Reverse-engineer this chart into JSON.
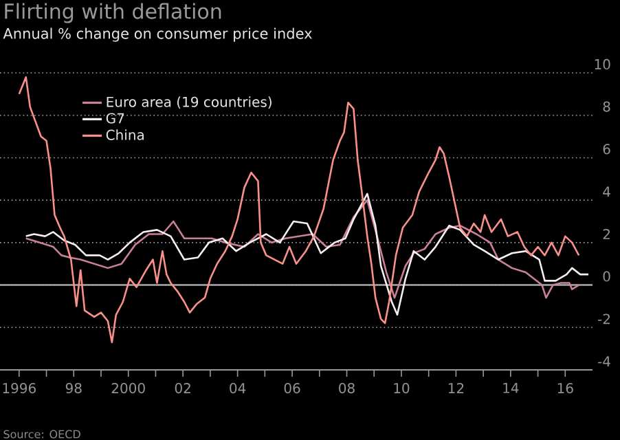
{
  "chart_data": {
    "type": "line",
    "title": "Flirting with deflation",
    "subtitle": "Annual % change on consumer price index",
    "annotations": [
      "Source: OECD"
    ],
    "xlim": [
      1995.3,
      2017.0
    ],
    "xticks": [
      {
        "value": 1996,
        "label": "1996"
      },
      {
        "value": 1997,
        "label": null
      },
      {
        "value": 1998,
        "label": "98"
      },
      {
        "value": 1999,
        "label": null
      },
      {
        "value": 2000,
        "label": "2000"
      },
      {
        "value": 2001,
        "label": null
      },
      {
        "value": 2002,
        "label": "02"
      },
      {
        "value": 2003,
        "label": null
      },
      {
        "value": 2004,
        "label": "04"
      },
      {
        "value": 2005,
        "label": null
      },
      {
        "value": 2006,
        "label": "06"
      },
      {
        "value": 2007,
        "label": null
      },
      {
        "value": 2008,
        "label": "08"
      },
      {
        "value": 2009,
        "label": null
      },
      {
        "value": 2010,
        "label": "10"
      },
      {
        "value": 2011,
        "label": null
      },
      {
        "value": 2012,
        "label": "12"
      },
      {
        "value": 2013,
        "label": null
      },
      {
        "value": 2014,
        "label": "14"
      },
      {
        "value": 2015,
        "label": null
      },
      {
        "value": 2016,
        "label": "16"
      }
    ],
    "ylim": [
      -4,
      10
    ],
    "yticks": [
      -4,
      -2,
      0,
      2,
      4,
      6,
      8,
      10
    ],
    "grid": "y",
    "legend": "top left",
    "marker": "none",
    "line_style": "solid",
    "ref_lines": [
      {
        "axis": "y",
        "value": 0,
        "color": "#a8a8a8"
      }
    ],
    "series": [
      {
        "name": "Euro area (19 countries)",
        "color": "#cc7f9c",
        "x": [
          1996.25,
          1996.75,
          1997.25,
          1997.55,
          1997.85,
          1998.25,
          1998.75,
          1999.25,
          1999.75,
          2000.25,
          2000.75,
          2001.25,
          2001.65,
          2002.05,
          2002.55,
          2003.05,
          2003.55,
          2004.25,
          2004.75,
          2005.25,
          2005.75,
          2006.25,
          2006.75,
          2007.25,
          2007.75,
          2008.25,
          2008.75,
          2009.15,
          2009.45,
          2009.75,
          2010.15,
          2010.45,
          2010.85,
          2011.25,
          2011.75,
          2012.15,
          2012.75,
          2013.25,
          2013.55,
          2014.05,
          2014.55,
          2015.15,
          2015.3,
          2015.55,
          2015.85,
          2016.15,
          2016.25,
          2016.5
        ],
        "values": [
          2.2,
          2.0,
          1.8,
          1.4,
          1.3,
          1.2,
          1.0,
          0.8,
          1.0,
          1.9,
          2.4,
          2.4,
          3.0,
          2.2,
          2.2,
          2.2,
          2.0,
          1.8,
          2.4,
          2.0,
          2.2,
          2.3,
          2.4,
          1.8,
          1.9,
          3.2,
          4.0,
          2.1,
          0.6,
          -0.6,
          0.9,
          1.5,
          1.7,
          2.4,
          2.7,
          2.8,
          2.4,
          2.0,
          1.2,
          0.8,
          0.6,
          0.0,
          -0.6,
          0.0,
          0.1,
          0.1,
          -0.2,
          0.0
        ]
      },
      {
        "name": "G7",
        "color": "#f6eef0",
        "x": [
          1996.25,
          1996.55,
          1996.95,
          1997.25,
          1997.65,
          1998.05,
          1998.45,
          1998.95,
          1999.25,
          1999.65,
          2000.05,
          2000.55,
          2001.05,
          2001.55,
          2002.05,
          2002.55,
          2002.95,
          2003.45,
          2003.95,
          2004.45,
          2005.05,
          2005.55,
          2006.05,
          2006.55,
          2007.05,
          2007.55,
          2007.95,
          2008.25,
          2008.75,
          2009.05,
          2009.25,
          2009.65,
          2009.85,
          2010.15,
          2010.45,
          2010.85,
          2011.25,
          2011.75,
          2012.15,
          2012.65,
          2013.05,
          2013.55,
          2014.05,
          2014.55,
          2015.05,
          2015.25,
          2015.65,
          2016.05,
          2016.25,
          2016.55,
          2016.85
        ],
        "values": [
          2.3,
          2.4,
          2.3,
          2.5,
          2.1,
          1.9,
          1.4,
          1.4,
          1.2,
          1.5,
          2.0,
          2.5,
          2.6,
          2.3,
          1.2,
          1.3,
          2.0,
          2.2,
          1.6,
          2.0,
          2.4,
          2.0,
          3.0,
          2.9,
          1.5,
          2.0,
          2.2,
          3.1,
          4.3,
          2.8,
          0.9,
          -0.8,
          -1.4,
          0.3,
          1.6,
          1.2,
          1.8,
          2.8,
          2.6,
          1.9,
          1.6,
          1.2,
          1.5,
          1.6,
          1.2,
          0.2,
          0.2,
          0.5,
          0.8,
          0.5,
          0.5
        ]
      },
      {
        "name": "China",
        "color": "#f9918a",
        "x": [
          1996.0,
          1996.25,
          1996.4,
          1996.8,
          1997.0,
          1997.15,
          1997.3,
          1997.5,
          1997.65,
          1997.9,
          1998.1,
          1998.25,
          1998.4,
          1998.75,
          1999.0,
          1999.25,
          1999.4,
          1999.55,
          1999.8,
          2000.05,
          2000.3,
          2000.65,
          2000.9,
          2001.05,
          2001.25,
          2001.4,
          2001.55,
          2001.8,
          2002.05,
          2002.25,
          2002.5,
          2002.8,
          2003.0,
          2003.25,
          2003.55,
          2003.8,
          2004.0,
          2004.25,
          2004.5,
          2004.75,
          2004.85,
          2005.05,
          2005.65,
          2005.9,
          2006.15,
          2006.5,
          2006.8,
          2007.15,
          2007.5,
          2007.75,
          2007.9,
          2008.05,
          2008.25,
          2008.4,
          2008.55,
          2008.75,
          2008.9,
          2009.05,
          2009.25,
          2009.4,
          2009.55,
          2009.8,
          2010.05,
          2010.4,
          2010.65,
          2011.0,
          2011.25,
          2011.4,
          2011.55,
          2011.75,
          2011.9,
          2012.15,
          2012.4,
          2012.65,
          2012.9,
          2013.05,
          2013.3,
          2013.65,
          2013.9,
          2014.25,
          2014.5,
          2014.75,
          2015.0,
          2015.25,
          2015.5,
          2015.75,
          2016.0,
          2016.25,
          2016.5
        ],
        "values": [
          9.0,
          9.8,
          8.4,
          7.0,
          6.8,
          5.5,
          3.3,
          2.7,
          2.3,
          1.2,
          -1.0,
          0.7,
          -1.2,
          -1.5,
          -1.3,
          -1.7,
          -2.7,
          -1.4,
          -0.8,
          0.3,
          -0.1,
          0.7,
          1.2,
          0.1,
          1.6,
          0.5,
          0.1,
          -0.3,
          -0.8,
          -1.3,
          -0.9,
          -0.6,
          0.3,
          1.0,
          1.6,
          2.3,
          3.1,
          4.6,
          5.3,
          4.9,
          2.0,
          1.4,
          1.0,
          1.8,
          1.0,
          1.6,
          2.3,
          3.6,
          5.9,
          6.8,
          7.2,
          8.6,
          8.3,
          5.9,
          4.4,
          2.3,
          1.0,
          -0.6,
          -1.6,
          -1.8,
          -0.8,
          1.4,
          2.7,
          3.3,
          4.4,
          5.3,
          5.9,
          6.5,
          6.2,
          5.1,
          4.2,
          2.7,
          2.3,
          2.9,
          2.5,
          3.3,
          2.5,
          3.1,
          2.3,
          2.5,
          1.8,
          1.4,
          1.8,
          1.4,
          2.0,
          1.4,
          2.3,
          2.0,
          1.4
        ]
      }
    ]
  }
}
